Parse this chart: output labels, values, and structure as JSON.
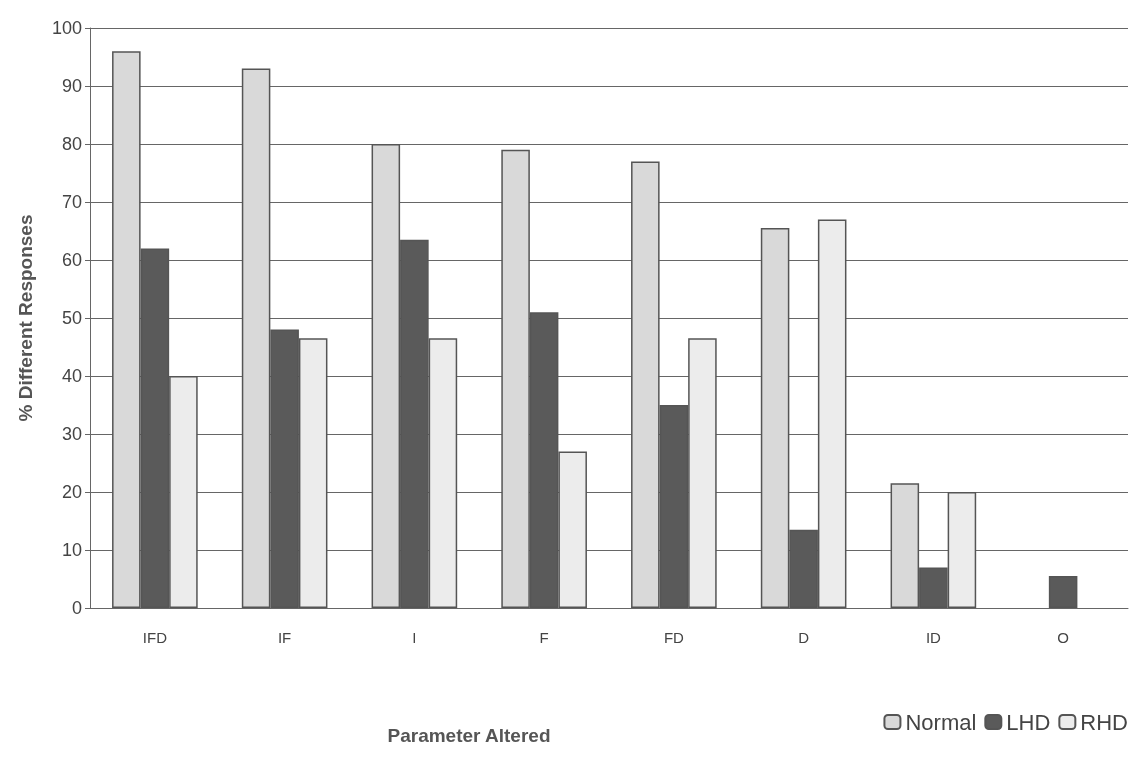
{
  "chart_data": {
    "type": "bar",
    "xlabel": "Parameter Altered",
    "ylabel": "% Different Responses",
    "categories": [
      "IFD",
      "IF",
      "I",
      "F",
      "FD",
      "D",
      "ID",
      "O"
    ],
    "series": [
      {
        "name": "Normal",
        "color": "#d9d9d9",
        "values": [
          96,
          93,
          80,
          79,
          77,
          65.5,
          21.5,
          null
        ]
      },
      {
        "name": "LHD",
        "color": "#5a5a5a",
        "values": [
          62,
          48,
          63.5,
          51,
          35,
          13.5,
          7,
          5.5
        ]
      },
      {
        "name": "RHD",
        "color": "#ececec",
        "values": [
          40,
          46.5,
          46.5,
          27,
          46.5,
          67,
          20,
          null
        ]
      }
    ],
    "ylim": [
      0,
      100
    ],
    "yticks": [
      0,
      10,
      20,
      30,
      40,
      50,
      60,
      70,
      80,
      90,
      100
    ],
    "grid": "y",
    "legend": "bottom right"
  }
}
